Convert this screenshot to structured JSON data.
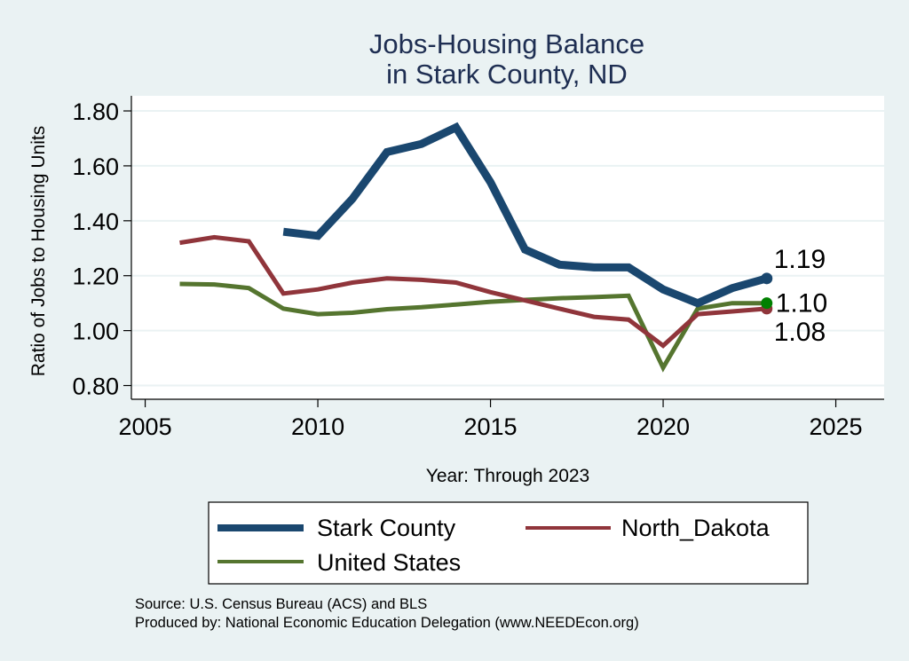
{
  "chart_data": {
    "type": "line",
    "title": "Jobs-Housing Balance",
    "subtitle": "in Stark County, ND",
    "xlabel": "Year: Through 2023",
    "ylabel": "Ratio of Jobs to Housing Units",
    "xlim": [
      2004.6,
      2026.4
    ],
    "ylim": [
      0.75,
      1.855
    ],
    "xticks": [
      2005,
      2010,
      2015,
      2020,
      2025
    ],
    "xtick_labels": [
      "2005",
      "2010",
      "2015",
      "2020",
      "2025"
    ],
    "yticks": [
      0.8,
      1.0,
      1.2,
      1.4,
      1.6,
      1.8
    ],
    "ytick_labels": [
      "0.80",
      "1.00",
      "1.20",
      "1.40",
      "1.60",
      "1.80"
    ],
    "grid": true,
    "legend_position": "bottom",
    "series": [
      {
        "name": "Stark County",
        "color": "#1A476F",
        "x": [
          2009,
          2010,
          2011,
          2012,
          2013,
          2014,
          2015,
          2016,
          2017,
          2018,
          2019,
          2020,
          2021,
          2022,
          2023
        ],
        "values": [
          1.36,
          1.345,
          1.48,
          1.65,
          1.68,
          1.74,
          1.54,
          1.295,
          1.24,
          1.23,
          1.23,
          1.15,
          1.1,
          1.155,
          1.19
        ],
        "end_label": "1.19"
      },
      {
        "name": "North_Dakota",
        "color": "#90353B",
        "x": [
          2006,
          2007,
          2008,
          2009,
          2010,
          2011,
          2012,
          2013,
          2014,
          2015,
          2016,
          2017,
          2018,
          2019,
          2020,
          2021,
          2022,
          2023
        ],
        "values": [
          1.32,
          1.34,
          1.325,
          1.135,
          1.15,
          1.175,
          1.19,
          1.185,
          1.175,
          1.14,
          1.11,
          1.08,
          1.05,
          1.04,
          0.945,
          1.06,
          1.07,
          1.08
        ],
        "end_label": "1.08"
      },
      {
        "name": "United States",
        "color": "#55752F",
        "x": [
          2006,
          2007,
          2008,
          2009,
          2010,
          2011,
          2012,
          2013,
          2014,
          2015,
          2016,
          2017,
          2018,
          2019,
          2020,
          2021,
          2022,
          2023
        ],
        "values": [
          1.17,
          1.168,
          1.155,
          1.08,
          1.06,
          1.065,
          1.078,
          1.085,
          1.095,
          1.105,
          1.112,
          1.118,
          1.122,
          1.127,
          0.865,
          1.08,
          1.1,
          1.1
        ],
        "end_label": "1.10",
        "end_marker_color": "#008000"
      }
    ],
    "notes": [
      "Source: U.S. Census Bureau (ACS) and BLS",
      "Produced by: National Economic Education Delegation (www.NEEDEcon.org)"
    ]
  }
}
